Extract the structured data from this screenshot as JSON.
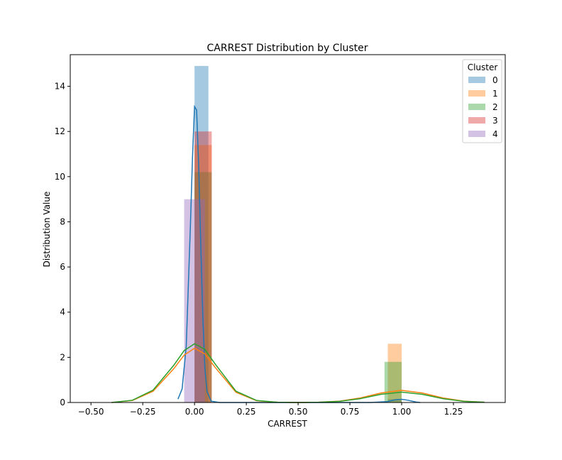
{
  "chart_data": {
    "type": "bar",
    "title": "CARREST Distribution by Cluster",
    "xlabel": "CARREST",
    "ylabel": "Distribution Value",
    "xlim": [
      -0.6,
      1.5
    ],
    "ylim": [
      0,
      15.4
    ],
    "xticks": [
      -0.5,
      -0.25,
      0.0,
      0.25,
      0.5,
      0.75,
      1.0,
      1.25
    ],
    "xtick_labels": [
      "−0.50",
      "−0.25",
      "0.00",
      "0.25",
      "0.50",
      "0.75",
      "1.00",
      "1.25"
    ],
    "yticks": [
      0,
      2,
      4,
      6,
      8,
      10,
      12,
      14
    ],
    "ytick_labels": [
      "0",
      "2",
      "4",
      "6",
      "8",
      "10",
      "12",
      "14"
    ],
    "grid": false,
    "legend": {
      "title": "Cluster",
      "placement": "top-right"
    },
    "series": [
      {
        "name": "0",
        "color": "#1f77b4",
        "bars": [
          {
            "x0": 0.0,
            "x1": 0.067,
            "value": 14.9
          },
          {
            "x0": 0.933,
            "x1": 1.0,
            "value": 0.15
          }
        ],
        "kde": [
          [
            -0.08,
            0.15
          ],
          [
            -0.06,
            0.6
          ],
          [
            -0.04,
            2.5
          ],
          [
            -0.02,
            7.8
          ],
          [
            -0.01,
            10.8
          ],
          [
            0.0,
            13.1
          ],
          [
            0.01,
            12.95
          ],
          [
            0.02,
            10.5
          ],
          [
            0.03,
            7.0
          ],
          [
            0.04,
            3.8
          ],
          [
            0.05,
            1.5
          ],
          [
            0.06,
            0.5
          ],
          [
            0.08,
            0.06
          ],
          [
            0.12,
            0.0
          ],
          [
            0.85,
            0.0
          ],
          [
            0.93,
            0.04
          ],
          [
            0.97,
            0.12
          ],
          [
            1.0,
            0.14
          ],
          [
            1.03,
            0.1
          ],
          [
            1.07,
            0.02
          ],
          [
            1.09,
            0.0
          ]
        ]
      },
      {
        "name": "1",
        "color": "#ff7f0e",
        "bars": [
          {
            "x0": 0.0,
            "x1": 0.083,
            "value": 11.4
          },
          {
            "x0": 0.933,
            "x1": 1.0,
            "value": 2.6
          }
        ],
        "kde": [
          [
            -0.4,
            0.0
          ],
          [
            -0.3,
            0.09
          ],
          [
            -0.2,
            0.5
          ],
          [
            -0.1,
            1.5
          ],
          [
            -0.05,
            2.1
          ],
          [
            0.0,
            2.4
          ],
          [
            0.05,
            2.15
          ],
          [
            0.1,
            1.55
          ],
          [
            0.2,
            0.45
          ],
          [
            0.3,
            0.08
          ],
          [
            0.4,
            0.01
          ],
          [
            0.5,
            0.0
          ],
          [
            0.6,
            0.01
          ],
          [
            0.7,
            0.06
          ],
          [
            0.8,
            0.2
          ],
          [
            0.9,
            0.42
          ],
          [
            1.0,
            0.54
          ],
          [
            1.1,
            0.42
          ],
          [
            1.2,
            0.2
          ],
          [
            1.3,
            0.06
          ],
          [
            1.4,
            0.01
          ]
        ]
      },
      {
        "name": "2",
        "color": "#2ca02c",
        "bars": [
          {
            "x0": 0.0,
            "x1": 0.083,
            "value": 10.2
          },
          {
            "x0": 0.917,
            "x1": 1.0,
            "value": 1.8
          }
        ],
        "kde": [
          [
            -0.4,
            0.0
          ],
          [
            -0.3,
            0.1
          ],
          [
            -0.2,
            0.55
          ],
          [
            -0.1,
            1.65
          ],
          [
            -0.05,
            2.3
          ],
          [
            0.0,
            2.6
          ],
          [
            0.05,
            2.35
          ],
          [
            0.1,
            1.7
          ],
          [
            0.2,
            0.5
          ],
          [
            0.3,
            0.09
          ],
          [
            0.4,
            0.01
          ],
          [
            0.5,
            0.0
          ],
          [
            0.6,
            0.01
          ],
          [
            0.7,
            0.05
          ],
          [
            0.8,
            0.17
          ],
          [
            0.9,
            0.36
          ],
          [
            1.0,
            0.46
          ],
          [
            1.1,
            0.36
          ],
          [
            1.2,
            0.17
          ],
          [
            1.3,
            0.05
          ],
          [
            1.4,
            0.01
          ]
        ]
      },
      {
        "name": "3",
        "color": "#d62728",
        "bars": [
          {
            "x0": 0.0,
            "x1": 0.083,
            "value": 12.0
          }
        ],
        "kde": []
      },
      {
        "name": "4",
        "color": "#9467bd",
        "bars": [
          {
            "x0": -0.05,
            "x1": 0.05,
            "value": 9.0
          }
        ],
        "kde": []
      }
    ]
  }
}
